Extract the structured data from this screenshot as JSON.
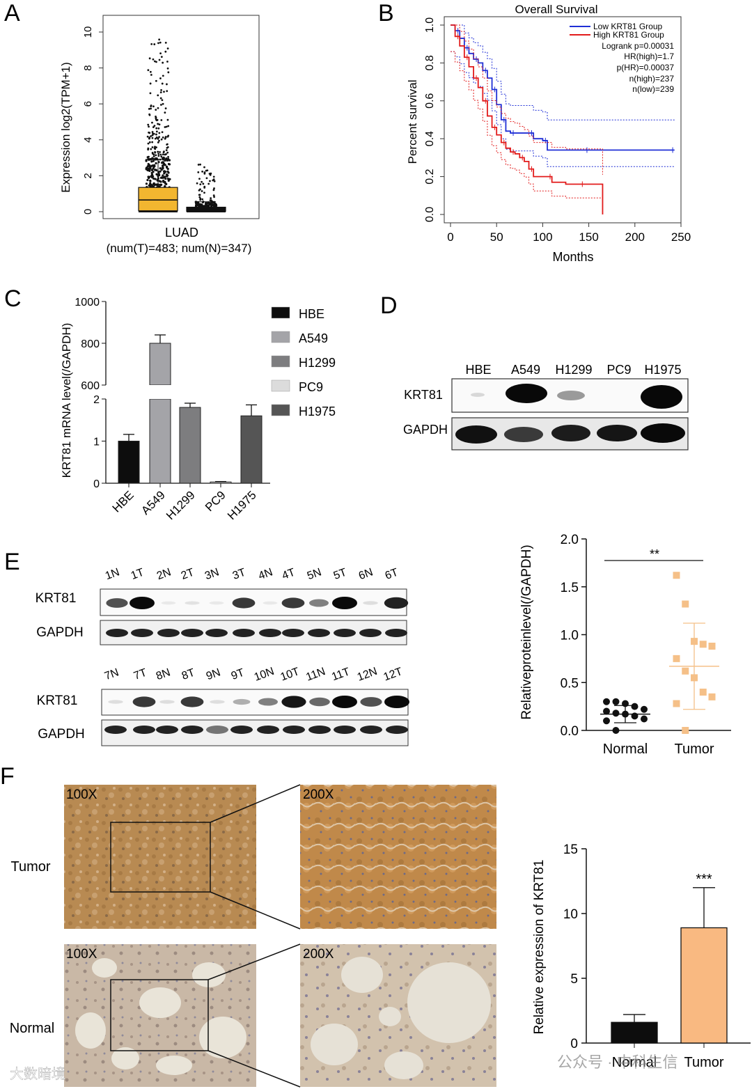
{
  "panels": {
    "A": "A",
    "B": "B",
    "C": "C",
    "D": "D",
    "E": "E",
    "F": "F"
  },
  "panel_a": {
    "ylabel": "Expression log2(TPM+1)",
    "yticks": [
      "0",
      "2",
      "4",
      "6",
      "8",
      "10"
    ],
    "xlabel": "LUAD",
    "xlabel2": "(num(T)=483; num(N)=347)",
    "tumor_color": "#f2b630",
    "normal_color": "#111111"
  },
  "panel_b": {
    "title": "Overall Survival",
    "ylabel": "Percent survival",
    "xlabel": "Months",
    "xticks": [
      "0",
      "50",
      "100",
      "150",
      "200",
      "250"
    ],
    "yticks": [
      "0.0",
      "0.2",
      "0.4",
      "0.6",
      "0.8",
      "1.0"
    ],
    "legend": {
      "low": "Low KRT81 Group",
      "high": "High KRT81 Group",
      "logrank": "Logrank p=0.00031",
      "hr": "HR(high)=1.7",
      "phr": "p(HR)=0.00037",
      "nhigh": "n(high)=237",
      "nlow": "n(low)=239"
    },
    "low_color": "#1f2fd6",
    "high_color": "#e21b1b"
  },
  "panel_c": {
    "ylabel": "KRT81 mRNA level(/GAPDH)",
    "upper_ticks": [
      "600",
      "800",
      "1000"
    ],
    "lower_ticks": [
      "0",
      "1",
      "2"
    ],
    "categories": [
      "HBE",
      "A549",
      "H1299",
      "PC9",
      "H1975"
    ],
    "legend": [
      "HBE",
      "A549",
      "H1299",
      "PC9",
      "H1975"
    ],
    "colors": [
      "#0d0d0d",
      "#a4a4a8",
      "#7d7d7f",
      "#dcdcdc",
      "#555555"
    ]
  },
  "panel_d": {
    "lanes": [
      "HBE",
      "A549",
      "H1299",
      "PC9",
      "H1975"
    ],
    "row1": "KRT81",
    "row2": "GAPDH"
  },
  "panel_e": {
    "lanes_top": [
      "1N",
      "1T",
      "2N",
      "2T",
      "3N",
      "3T",
      "4N",
      "4T",
      "5N",
      "5T",
      "6N",
      "6T"
    ],
    "lanes_bottom": [
      "7N",
      "7T",
      "8N",
      "8T",
      "9N",
      "9T",
      "10N",
      "10T",
      "11N",
      "11T",
      "12N",
      "12T"
    ],
    "row1": "KRT81",
    "row2": "GAPDH",
    "scatter": {
      "ylabel": "Relativeproteinlevel(/GAPDH)",
      "yticks": [
        "0.0",
        "0.5",
        "1.0",
        "1.5",
        "2.0"
      ],
      "groups": [
        "Normal",
        "Tumor"
      ],
      "significance": "**",
      "normal_color": "#111111",
      "tumor_color": "#f5c088"
    }
  },
  "panel_f": {
    "row_labels": [
      "Tumor",
      "Normal"
    ],
    "mag_low": "100X",
    "mag_high": "200X",
    "bar": {
      "ylabel": "Relative expression of KRT81",
      "yticks": [
        "0",
        "5",
        "10",
        "15"
      ],
      "groups": [
        "Normal",
        "Tumor"
      ],
      "significance": "***",
      "normal_color": "#0d0d0d",
      "tumor_color": "#f9b981"
    },
    "watermark_left": "大数暗境",
    "watermark_right": "公众号 · 中科生信"
  },
  "chart_data": [
    {
      "type": "scatter",
      "panel": "A",
      "ylabel": "Expression log2(TPM+1)",
      "xlabel": "LUAD",
      "ylim": [
        0,
        10.5
      ],
      "series": [
        {
          "name": "Tumor",
          "n": 483,
          "q1": 0.05,
          "median": 0.65,
          "q3": 1.35,
          "whisker_high": 2.9,
          "max": 10.0
        },
        {
          "name": "Normal",
          "n": 347,
          "q1": 0.02,
          "median": 0.15,
          "q3": 0.25,
          "whisker_high": 0.55,
          "max": 2.7
        }
      ]
    },
    {
      "type": "line",
      "panel": "B",
      "title": "Overall Survival",
      "xlabel": "Months",
      "ylabel": "Percent survival",
      "xlim": [
        0,
        250
      ],
      "ylim": [
        0,
        1.0
      ],
      "series": [
        {
          "name": "Low KRT81 Group",
          "x": [
            0,
            5,
            10,
            15,
            20,
            25,
            30,
            35,
            40,
            45,
            50,
            55,
            60,
            65,
            70,
            80,
            90,
            100,
            105,
            110,
            150,
            200,
            243
          ],
          "y": [
            1.0,
            0.97,
            0.93,
            0.88,
            0.85,
            0.82,
            0.8,
            0.76,
            0.72,
            0.66,
            0.58,
            0.5,
            0.44,
            0.43,
            0.43,
            0.43,
            0.4,
            0.39,
            0.34,
            0.34,
            0.34,
            0.34,
            0.34
          ]
        },
        {
          "name": "High KRT81 Group",
          "x": [
            0,
            5,
            10,
            15,
            20,
            25,
            30,
            35,
            40,
            45,
            50,
            55,
            60,
            65,
            70,
            75,
            80,
            85,
            90,
            100,
            110,
            125,
            145,
            165
          ],
          "y": [
            1.0,
            0.94,
            0.89,
            0.83,
            0.78,
            0.72,
            0.67,
            0.6,
            0.52,
            0.46,
            0.42,
            0.38,
            0.35,
            0.33,
            0.32,
            0.3,
            0.28,
            0.24,
            0.2,
            0.2,
            0.17,
            0.16,
            0.16,
            0.0
          ]
        }
      ]
    },
    {
      "type": "bar",
      "panel": "C",
      "ylabel": "KRT81 mRNA level(/GAPDH)",
      "categories": [
        "HBE",
        "A549",
        "H1299",
        "PC9",
        "H1975"
      ],
      "values": [
        1.0,
        800,
        1.8,
        0.03,
        1.6
      ],
      "errors": [
        0.16,
        40,
        0.1,
        0.01,
        0.26
      ],
      "axis_break": {
        "lower": [
          0,
          2
        ],
        "upper": [
          600,
          1000
        ]
      }
    },
    {
      "type": "scatter",
      "panel": "E",
      "ylabel": "Relativeproteinlevel(/GAPDH)",
      "ylim": [
        0,
        2.0
      ],
      "series": [
        {
          "name": "Normal",
          "values": [
            0.3,
            0.3,
            0.28,
            0.25,
            0.22,
            0.2,
            0.18,
            0.17,
            0.15,
            0.12,
            0.1,
            0.0
          ],
          "mean": 0.17,
          "sd": 0.09
        },
        {
          "name": "Tumor",
          "values": [
            1.62,
            1.32,
            0.93,
            0.9,
            0.88,
            0.75,
            0.62,
            0.55,
            0.4,
            0.35,
            0.28,
            0.0
          ],
          "mean": 0.67,
          "sd": 0.45
        }
      ],
      "significance": "**"
    },
    {
      "type": "bar",
      "panel": "F",
      "ylabel": "Relative expression of KRT81",
      "categories": [
        "Normal",
        "Tumor"
      ],
      "values": [
        1.6,
        8.9
      ],
      "errors": [
        0.6,
        3.1
      ],
      "ylim": [
        0,
        15
      ],
      "significance": "***"
    }
  ]
}
